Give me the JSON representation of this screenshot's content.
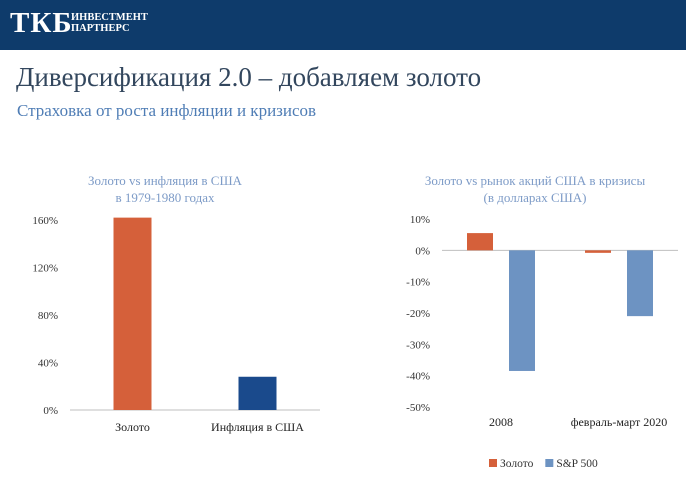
{
  "header": {
    "logo_mark": "ТКБ",
    "logo_line1": "ИНВЕСТМЕНТ",
    "logo_line2": "ПАРТНЕРС"
  },
  "main_title": "Диверсификация 2.0 – добавляем золото",
  "subtitle": "Страховка от роста инфляции и кризисов",
  "chart_data": [
    {
      "type": "bar",
      "title_lines": [
        "Золото vs инфляция в США",
        "в 1979-1980 годах"
      ],
      "categories": [
        "Золото",
        "Инфляция в США"
      ],
      "values": [
        162,
        28
      ],
      "colors": [
        "#d5603a",
        "#1a4a8c"
      ],
      "ylim": [
        0,
        160
      ],
      "yticks": [
        0,
        40,
        80,
        120,
        160
      ],
      "ytick_labels": [
        "0%",
        "40%",
        "80%",
        "120%",
        "160%"
      ],
      "xlabel": "",
      "ylabel": "",
      "grid": false
    },
    {
      "type": "bar",
      "title_lines": [
        "Золото vs рынок акций США в кризисы",
        "(в долларах США)"
      ],
      "categories": [
        "2008",
        "февраль-март 2020"
      ],
      "series": [
        {
          "name": "Золото",
          "values": [
            5.5,
            -0.8
          ],
          "color": "#d5603a"
        },
        {
          "name": "S&P 500",
          "values": [
            -38.5,
            -21
          ],
          "color": "#6d93c2"
        }
      ],
      "ylim": [
        -50,
        10
      ],
      "yticks": [
        10,
        0,
        -10,
        -20,
        -30,
        -40,
        -50
      ],
      "ytick_labels": [
        "10%",
        "0%",
        "-10%",
        "-20%",
        "-30%",
        "-40%",
        "-50%"
      ],
      "legend_position": "bottom",
      "xlabel": "",
      "ylabel": "",
      "grid": false
    }
  ]
}
